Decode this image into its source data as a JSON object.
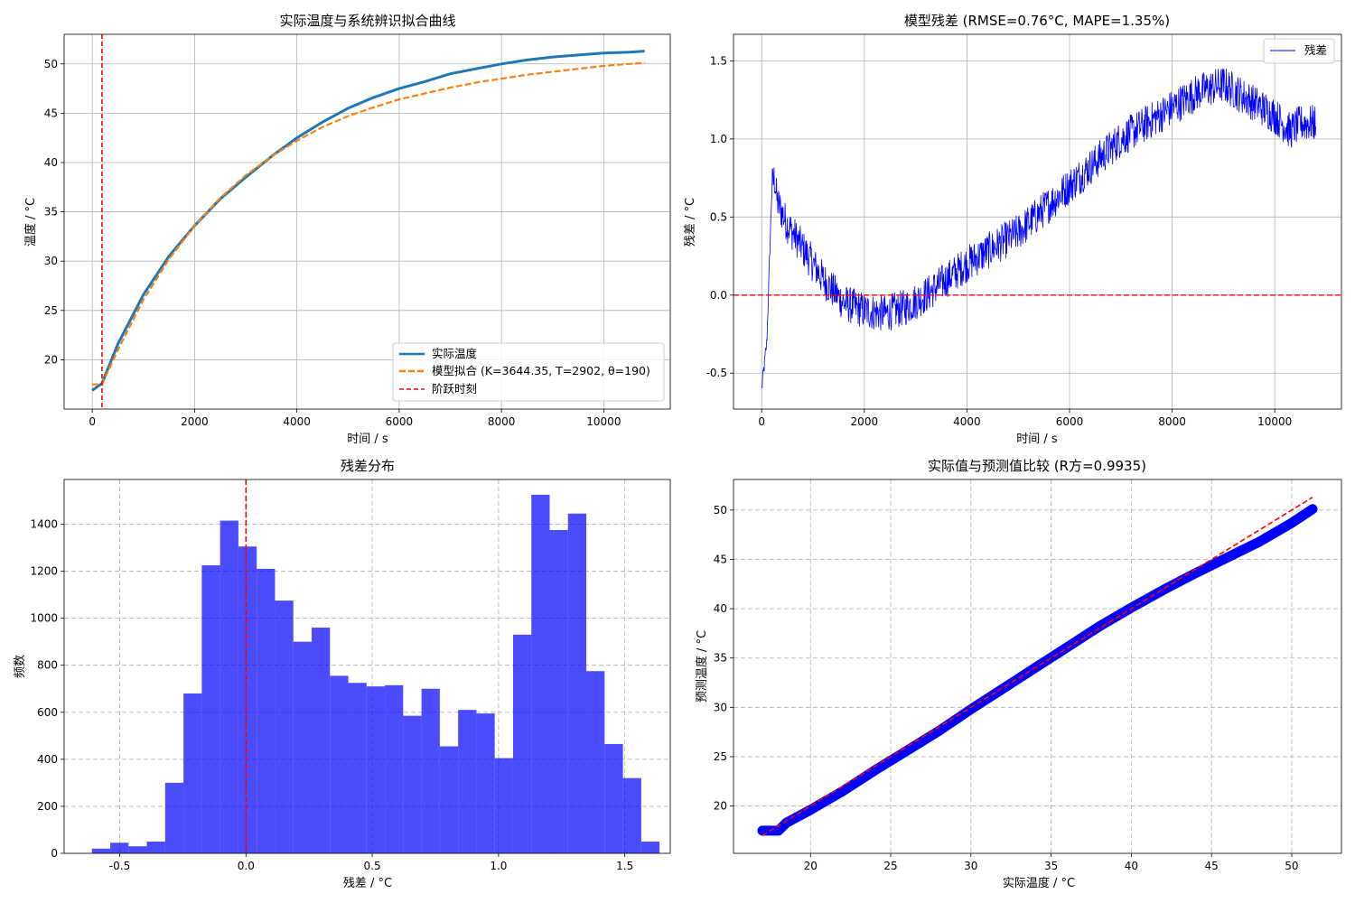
{
  "chart_data": [
    {
      "type": "line",
      "title": "实际温度与系统辨识拟合曲线",
      "xlabel": "时间 / s",
      "ylabel": "温度 / °C",
      "xlim": [
        -550,
        11300
      ],
      "ylim": [
        15,
        53
      ],
      "xticks": [
        0,
        2000,
        4000,
        6000,
        8000,
        10000
      ],
      "yticks": [
        20,
        25,
        30,
        35,
        40,
        45,
        50
      ],
      "grid": true,
      "legend_position": "lower-right",
      "legend": [
        "实际温度",
        "模型拟合 (K=3644.35, T=2902, θ=190)",
        "阶跃时刻"
      ],
      "series": [
        {
          "name": "实际温度",
          "color": "#1f77b4",
          "x": [
            0,
            190,
            500,
            1000,
            1500,
            2000,
            2500,
            3000,
            3500,
            4000,
            4500,
            5000,
            5500,
            6000,
            6500,
            7000,
            7500,
            8000,
            8500,
            9000,
            9500,
            10000,
            10500,
            10800
          ],
          "y": [
            16.9,
            17.6,
            21.6,
            26.6,
            30.5,
            33.6,
            36.3,
            38.5,
            40.6,
            42.5,
            44.1,
            45.5,
            46.6,
            47.5,
            48.2,
            49.0,
            49.5,
            50.0,
            50.4,
            50.7,
            50.9,
            51.1,
            51.2,
            51.3
          ]
        },
        {
          "name": "模型拟合 (K=3644.35, T=2902, θ=190)",
          "color": "#ff7f0e",
          "x": [
            0,
            190,
            500,
            1000,
            1500,
            2000,
            2500,
            3000,
            3500,
            4000,
            4500,
            5000,
            5500,
            6000,
            6500,
            7000,
            7500,
            8000,
            8500,
            9000,
            9500,
            10000,
            10500,
            10800
          ],
          "y": [
            17.5,
            17.5,
            21.0,
            26.1,
            30.2,
            33.6,
            36.4,
            38.7,
            40.6,
            42.2,
            43.6,
            44.7,
            45.6,
            46.4,
            47.0,
            47.6,
            48.1,
            48.5,
            48.9,
            49.2,
            49.5,
            49.8,
            50.0,
            50.1
          ]
        }
      ],
      "vline": {
        "name": "阶跃时刻",
        "x": 190,
        "color": "#ff0000"
      }
    },
    {
      "type": "line",
      "title": "模型残差 (RMSE=0.76°C, MAPE=1.35%)",
      "xlabel": "时间 / s",
      "ylabel": "残差 / °C",
      "xlim": [
        -550,
        11300
      ],
      "ylim": [
        -0.73,
        1.67
      ],
      "xticks": [
        0,
        2000,
        4000,
        6000,
        8000,
        10000
      ],
      "yticks": [
        -0.5,
        0.0,
        0.5,
        1.0,
        1.5
      ],
      "grid": true,
      "legend_position": "top-right",
      "legend": [
        "残差"
      ],
      "series": [
        {
          "name": "残差",
          "color": "#0000ff",
          "x": [
            0,
            100,
            150,
            200,
            250,
            300,
            500,
            800,
            1200,
            1600,
            2000,
            2400,
            2800,
            3200,
            3600,
            4000,
            4500,
            5000,
            5500,
            6000,
            6500,
            7000,
            7500,
            8000,
            8500,
            9000,
            9500,
            10000,
            10300,
            10500,
            10800
          ],
          "y": [
            -0.6,
            -0.3,
            0.2,
            0.7,
            0.75,
            0.6,
            0.45,
            0.3,
            0.1,
            -0.05,
            -0.1,
            -0.12,
            -0.08,
            0.0,
            0.1,
            0.2,
            0.3,
            0.4,
            0.55,
            0.7,
            0.85,
            1.0,
            1.1,
            1.2,
            1.3,
            1.35,
            1.25,
            1.15,
            1.05,
            1.1,
            1.1
          ]
        }
      ],
      "noise_amplitude": 0.12,
      "hline": {
        "y": 0.0,
        "color": "#ff0000"
      }
    },
    {
      "type": "bar",
      "title": "残差分布",
      "xlabel": "残差 / °C",
      "ylabel": "频数",
      "xlim": [
        -0.72,
        1.68
      ],
      "ylim": [
        0,
        1590
      ],
      "xticks": [
        -0.5,
        0.0,
        0.5,
        1.0,
        1.5
      ],
      "xtick_labels": [
        "-0.5",
        "0.0",
        "0.5",
        "1.0",
        "1.5"
      ],
      "yticks": [
        0,
        200,
        400,
        600,
        800,
        1000,
        1200,
        1400
      ],
      "grid": true,
      "bin_start": -0.61,
      "bin_width": 0.0725,
      "values": [
        20,
        45,
        30,
        50,
        300,
        680,
        1225,
        1415,
        1305,
        1210,
        1075,
        900,
        960,
        755,
        725,
        710,
        715,
        585,
        700,
        455,
        610,
        595,
        405,
        930,
        1525,
        1375,
        1445,
        775,
        465,
        320,
        50
      ],
      "color": "#0000ff",
      "vline": {
        "x": 0.0,
        "color": "#ff0000"
      }
    },
    {
      "type": "scatter",
      "title": "实际值与预测值比较 (R方=0.9935)",
      "xlabel": "实际温度 / °C",
      "ylabel": "预测温度 / °C",
      "xlim": [
        15.2,
        53.1
      ],
      "ylim": [
        15.2,
        53.1
      ],
      "xticks": [
        20,
        25,
        30,
        35,
        40,
        45,
        50
      ],
      "yticks": [
        20,
        25,
        30,
        35,
        40,
        45,
        50
      ],
      "grid": true,
      "color": "#0000ff",
      "points": [
        [
          17.0,
          17.5
        ],
        [
          17.5,
          17.5
        ],
        [
          18.0,
          17.5
        ],
        [
          18.5,
          18.3
        ],
        [
          20,
          19.6
        ],
        [
          22,
          21.5
        ],
        [
          24,
          23.6
        ],
        [
          26,
          25.6
        ],
        [
          28,
          27.6
        ],
        [
          30,
          29.8
        ],
        [
          32,
          31.9
        ],
        [
          34,
          34.0
        ],
        [
          36,
          36.1
        ],
        [
          38,
          38.2
        ],
        [
          40,
          40.1
        ],
        [
          42,
          41.9
        ],
        [
          44,
          43.6
        ],
        [
          46,
          45.2
        ],
        [
          48,
          46.8
        ],
        [
          50,
          48.7
        ],
        [
          51.3,
          50.1
        ]
      ],
      "reference_line": {
        "x": [
          17,
          51.3
        ],
        "y": [
          17,
          51.3
        ],
        "color": "#ff0000"
      }
    }
  ]
}
